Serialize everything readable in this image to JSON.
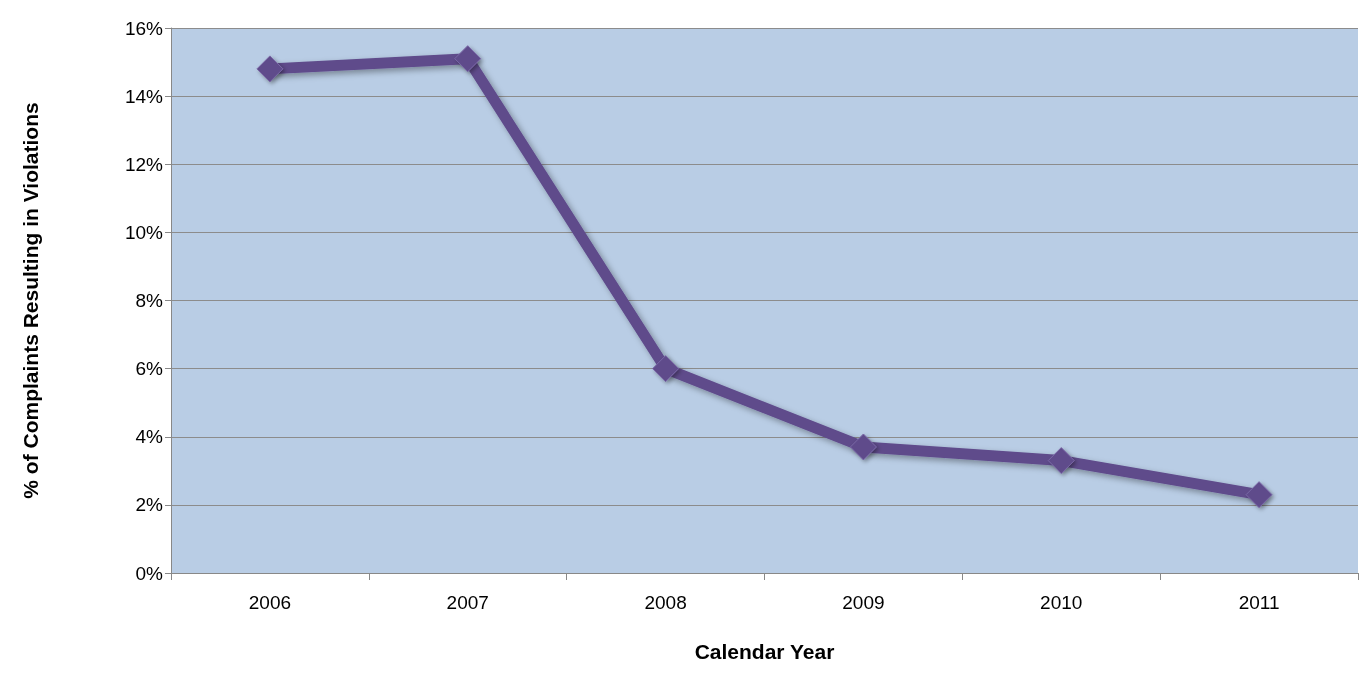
{
  "chart_data": {
    "type": "line",
    "xlabel": "Calendar Year",
    "ylabel": "% of Complaints Resulting in Violations",
    "categories": [
      "2006",
      "2007",
      "2008",
      "2009",
      "2010",
      "2011"
    ],
    "series": [
      {
        "color": "#5f4b8b",
        "values": [
          14.8,
          15.1,
          6.0,
          3.7,
          3.3,
          2.3
        ]
      }
    ],
    "ylim": [
      0,
      16
    ],
    "yticks": [
      {
        "value": 0,
        "label": "0%"
      },
      {
        "value": 2,
        "label": "2%"
      },
      {
        "value": 4,
        "label": "4%"
      },
      {
        "value": 6,
        "label": "6%"
      },
      {
        "value": 8,
        "label": "8%"
      },
      {
        "value": 10,
        "label": "10%"
      },
      {
        "value": 12,
        "label": "12%"
      },
      {
        "value": 14,
        "label": "14%"
      },
      {
        "value": 16,
        "label": "16%"
      }
    ],
    "grid": "y",
    "marker": "diamond",
    "line_style": "solid"
  }
}
